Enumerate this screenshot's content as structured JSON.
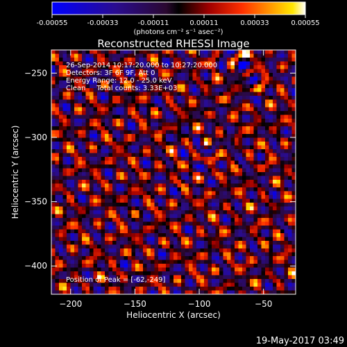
{
  "chart_data": {
    "type": "heatmap",
    "title": "Reconstructed RHESSI Image",
    "xlabel": "Heliocentric X (arcsec)",
    "ylabel": "Heliocentric Y (arcsec)",
    "xlim": [
      -215,
      -25
    ],
    "ylim": [
      -422,
      -232
    ],
    "xticks": [
      -200,
      -150,
      -100,
      -50
    ],
    "yticks": [
      -250,
      -300,
      -350,
      -400
    ],
    "colorbar": {
      "min": -0.00055,
      "max": 0.00055,
      "tick_values": [
        -0.00055,
        -0.00033,
        -0.00011,
        0.00011,
        0.00033,
        0.00055
      ],
      "tick_labels": [
        "-0.00055",
        "-0.00033",
        "-0.00011",
        "0.00011",
        "0.00033",
        "0.00055"
      ],
      "unit_label": "(photons cm⁻² s⁻¹ asec⁻²)"
    },
    "annotations": [
      "26-Sep-2014 10:17:20.000 to 10:27:20.000",
      "Detectors: 3F 6F 9F, Att 0",
      "Energy Range: 12.0 - 25.0 keV",
      "Clean     Total counts: 3.33E+03"
    ],
    "peak_label": "Position of Peak = [-62,-249]",
    "peak": [
      -62,
      -249
    ],
    "grid": false,
    "colormap": "red-temperature-diverging"
  },
  "footer": {
    "timestamp": "19-May-2017 03:49"
  },
  "colors": {
    "background": "#000000",
    "axis": "#ffffff",
    "cmap_neg": [
      "#0000ff",
      "#2010a0",
      "#301050",
      "#000000"
    ],
    "cmap_pos": [
      "#000000",
      "#8b0000",
      "#ff2000",
      "#ff8000",
      "#ffd000",
      "#ffffff"
    ]
  }
}
